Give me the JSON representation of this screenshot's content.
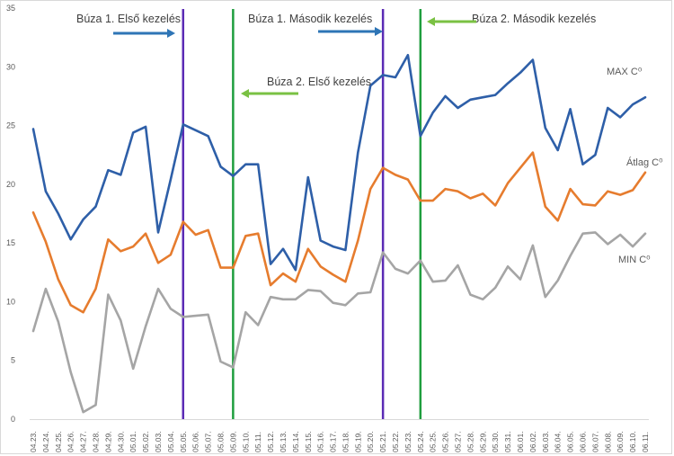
{
  "chart_data": {
    "type": "line",
    "title": "",
    "xlabel": "",
    "ylabel": "",
    "ylim": [
      0,
      35
    ],
    "yticks": [
      0,
      5,
      10,
      15,
      20,
      25,
      30,
      35
    ],
    "grid": "none",
    "x": [
      "04.23.",
      "04.24.",
      "04.25.",
      "04.26.",
      "04.27.",
      "04.28.",
      "04.29.",
      "04.30.",
      "05.01.",
      "05.02.",
      "05.03.",
      "05.04.",
      "05.05.",
      "05.06.",
      "05.07.",
      "05.08.",
      "05.09.",
      "05.10.",
      "05.11.",
      "05.12.",
      "05.13.",
      "05.14.",
      "05.15.",
      "05.16.",
      "05.17.",
      "05.18.",
      "05.19.",
      "05.20.",
      "05.21.",
      "05.22.",
      "05.23.",
      "05.24.",
      "05.25.",
      "05.26.",
      "05.27.",
      "05.28.",
      "05.29.",
      "05.30.",
      "05.31.",
      "06.01.",
      "06.02.",
      "06.03.",
      "06.04.",
      "06.05.",
      "06.06.",
      "06.07.",
      "06.08.",
      "06.09.",
      "06.10.",
      "06.11."
    ],
    "series": [
      {
        "name": "MAX C⁰",
        "color": "#2e5fa8",
        "values": [
          24.7,
          19.4,
          17.5,
          15.3,
          17.0,
          18.1,
          21.2,
          20.8,
          24.4,
          24.9,
          15.9,
          20.4,
          25.1,
          24.6,
          24.1,
          21.5,
          20.7,
          21.7,
          21.7,
          13.2,
          14.5,
          12.7,
          20.6,
          15.2,
          14.7,
          14.4,
          22.7,
          28.4,
          29.3,
          29.1,
          31.0,
          24.1,
          26.1,
          27.5,
          26.5,
          27.2,
          27.4,
          27.6,
          28.6,
          29.5,
          30.6,
          24.8,
          22.9,
          26.4,
          21.7,
          22.5,
          26.5,
          25.7,
          26.8,
          27.4
        ]
      },
      {
        "name": "Átlag C⁰",
        "color": "#e67c2e",
        "values": [
          17.6,
          15.1,
          11.9,
          9.7,
          9.1,
          11.1,
          15.3,
          14.3,
          14.7,
          15.8,
          13.3,
          14.0,
          16.8,
          15.7,
          16.1,
          12.9,
          12.9,
          15.6,
          15.8,
          11.4,
          12.4,
          11.7,
          14.5,
          13.0,
          12.3,
          11.7,
          15.2,
          19.6,
          21.4,
          20.8,
          20.4,
          18.6,
          18.6,
          19.6,
          19.4,
          18.8,
          19.2,
          18.2,
          20.1,
          21.4,
          22.7,
          18.1,
          16.9,
          19.6,
          18.3,
          18.2,
          19.4,
          19.1,
          19.5,
          21.0
        ]
      },
      {
        "name": "MIN C⁰",
        "color": "#a5a5a5",
        "values": [
          7.5,
          11.1,
          8.3,
          4.0,
          0.6,
          1.2,
          10.6,
          8.4,
          4.3,
          7.9,
          11.1,
          9.4,
          8.7,
          8.8,
          8.9,
          4.9,
          4.4,
          9.1,
          8.0,
          10.4,
          10.2,
          10.2,
          11.0,
          10.9,
          9.9,
          9.7,
          10.7,
          10.8,
          14.2,
          12.8,
          12.4,
          13.5,
          11.7,
          11.8,
          13.1,
          10.6,
          10.2,
          11.2,
          13.0,
          11.9,
          14.8,
          10.4,
          11.8,
          13.9,
          15.8,
          15.9,
          14.9,
          15.7,
          14.7,
          15.8
        ]
      }
    ],
    "series_labels": [
      "MAX C⁰",
      "Átlag C⁰",
      "MIN C⁰"
    ],
    "markers": [
      {
        "x": "05.05.",
        "color": "#5b2bb5"
      },
      {
        "x": "05.09.",
        "color": "#1f9e3e"
      },
      {
        "x": "05.21.",
        "color": "#5b2bb5"
      },
      {
        "x": "05.24.",
        "color": "#1f9e3e"
      }
    ],
    "annotations": [
      {
        "text": "Búza 1. Első kezelés",
        "arrow_color": "#2e75b6",
        "arrow_dir": "right"
      },
      {
        "text": "Búza 1. Második kezelés",
        "arrow_color": "#2e75b6",
        "arrow_dir": "right"
      },
      {
        "text": "Búza 2. Második kezelés",
        "arrow_color": "#7ac143",
        "arrow_dir": "left"
      },
      {
        "text": "Búza 2. Első kezelés",
        "arrow_color": "#7ac143",
        "arrow_dir": "left"
      }
    ]
  }
}
